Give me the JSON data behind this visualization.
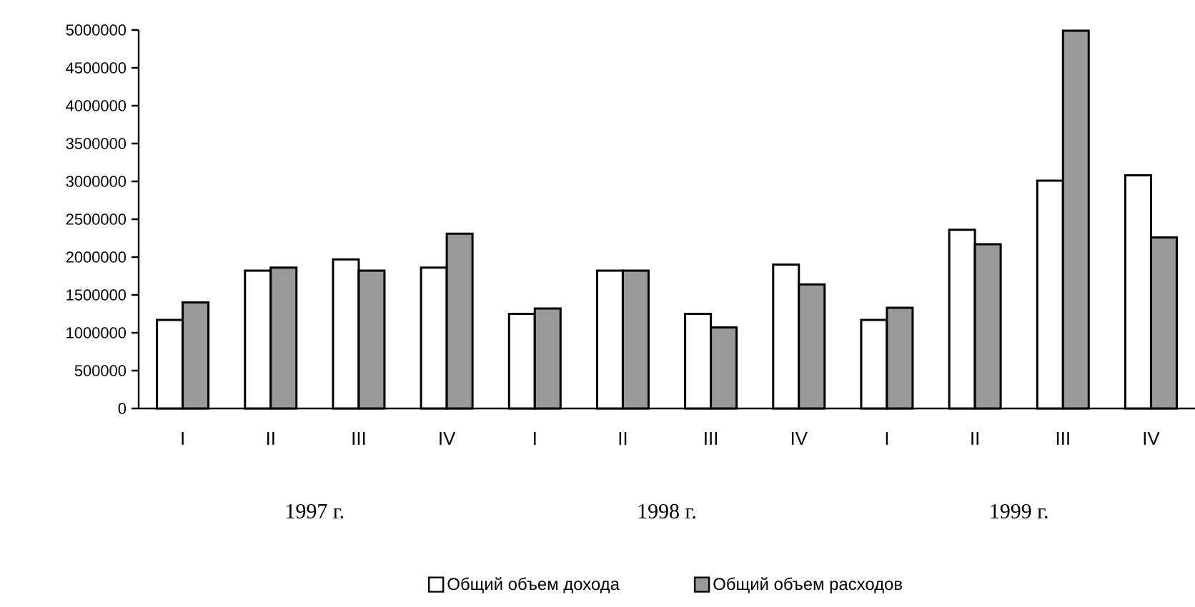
{
  "chart_data": {
    "type": "bar",
    "categories": [
      "I",
      "II",
      "III",
      "IV",
      "I",
      "II",
      "III",
      "IV",
      "I",
      "II",
      "III",
      "IV"
    ],
    "series": [
      {
        "name": "Общий объем дохода",
        "color": "#ffffff",
        "values": [
          1170000,
          1820000,
          1970000,
          1860000,
          1250000,
          1820000,
          1250000,
          1900000,
          1170000,
          2360000,
          3010000,
          3080000
        ]
      },
      {
        "name": "Общий объем расходов",
        "color": "#999999",
        "values": [
          1400000,
          1860000,
          1820000,
          2310000,
          1320000,
          1820000,
          1070000,
          1640000,
          1330000,
          2170000,
          4990000,
          2260000
        ]
      }
    ],
    "ylim": [
      0,
      5000000
    ],
    "yticks": [
      0,
      500000,
      1000000,
      1500000,
      2000000,
      2500000,
      3000000,
      3500000,
      4000000,
      4500000,
      5000000
    ],
    "annotations": [
      "1997 г.",
      "1998 г.",
      "1999 г."
    ],
    "grid": false,
    "legend": "bottom"
  }
}
